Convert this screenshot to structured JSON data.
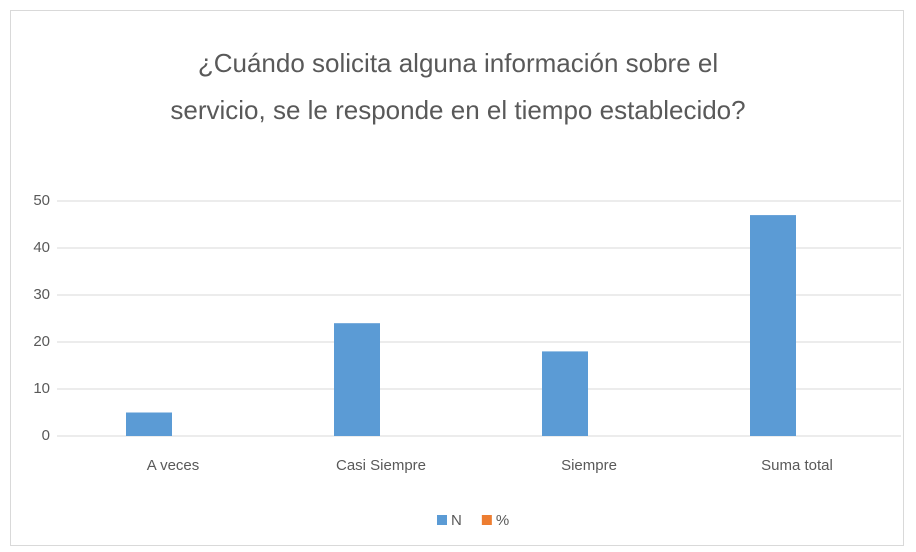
{
  "chart_data": {
    "type": "bar",
    "title": "¿Cuándo solicita alguna información sobre el servicio, se le responde en el tiempo establecido?",
    "categories": [
      "A veces",
      "Casi Siempre",
      "Siempre",
      "Suma total"
    ],
    "series": [
      {
        "name": "N",
        "color": "#5b9bd5",
        "values": [
          5,
          24,
          18,
          47
        ]
      },
      {
        "name": "%",
        "color": "#ed7d31",
        "values": [
          0,
          0,
          0,
          0
        ]
      }
    ],
    "ylim": [
      0,
      50
    ],
    "yticks": [
      0,
      10,
      20,
      30,
      40,
      50
    ],
    "grid": true,
    "legend": "bottom"
  }
}
